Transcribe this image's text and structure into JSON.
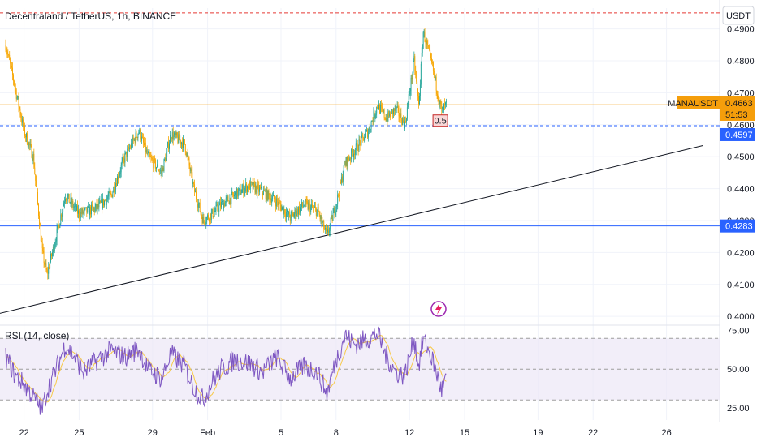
{
  "header": {
    "title": "Decentraland / TetherUS, 1h, BINANCE",
    "currency": "USDT"
  },
  "colors": {
    "up": "#26a69a",
    "down": "#f7a600",
    "hline_blue": "#2962ff",
    "hline_red": "#e53935",
    "trendline": "#131722",
    "rsi_line": "#7e57c2",
    "rsi_ma": "#f7c948",
    "rsi_band": "#ede7f6",
    "price_tag": "#f59e0b",
    "level_tag": "#2962ff"
  },
  "chart_data": [
    {
      "type": "candlestick",
      "symbol": "MANAUSDT",
      "interval": "1h",
      "x_tick_labels": [
        "22",
        "25",
        "29",
        "Feb",
        "5",
        "8",
        "12",
        "15",
        "19",
        "22",
        "26"
      ],
      "y_tick_labels": [
        "0.4900",
        "0.4800",
        "0.4700",
        "0.4600",
        "0.4500",
        "0.4400",
        "0.4300",
        "0.4200",
        "0.4100",
        "0.4000"
      ],
      "ylim": [
        0.3975,
        0.4965
      ],
      "grid": true,
      "approx_close_path": [
        {
          "x": "Jan 21 00:00",
          "y": 0.485
        },
        {
          "x": "Jan 21 12:00",
          "y": 0.472
        },
        {
          "x": "Jan 22 00:00",
          "y": 0.458
        },
        {
          "x": "Jan 22 12:00",
          "y": 0.45
        },
        {
          "x": "Jan 23 00:00",
          "y": 0.42
        },
        {
          "x": "Jan 23 06:00",
          "y": 0.413
        },
        {
          "x": "Jan 23 18:00",
          "y": 0.425
        },
        {
          "x": "Jan 24 06:00",
          "y": 0.438
        },
        {
          "x": "Jan 25 00:00",
          "y": 0.432
        },
        {
          "x": "Jan 25 12:00",
          "y": 0.433
        },
        {
          "x": "Jan 26 00:00",
          "y": 0.434
        },
        {
          "x": "Jan 26 18:00",
          "y": 0.438
        },
        {
          "x": "Jan 27 12:00",
          "y": 0.45
        },
        {
          "x": "Jan 28 06:00",
          "y": 0.458
        },
        {
          "x": "Jan 28 18:00",
          "y": 0.45
        },
        {
          "x": "Jan 29 12:00",
          "y": 0.445
        },
        {
          "x": "Jan 30 00:00",
          "y": 0.457
        },
        {
          "x": "Jan 30 18:00",
          "y": 0.454
        },
        {
          "x": "Jan 31 06:00",
          "y": 0.44
        },
        {
          "x": "Jan 31 18:00",
          "y": 0.43
        },
        {
          "x": "Feb 1 06:00",
          "y": 0.432
        },
        {
          "x": "Feb 1 18:00",
          "y": 0.435
        },
        {
          "x": "Feb 2 12:00",
          "y": 0.438
        },
        {
          "x": "Feb 3 06:00",
          "y": 0.441
        },
        {
          "x": "Feb 4 00:00",
          "y": 0.439
        },
        {
          "x": "Feb 4 18:00",
          "y": 0.436
        },
        {
          "x": "Feb 5 12:00",
          "y": 0.431
        },
        {
          "x": "Feb 6 06:00",
          "y": 0.435
        },
        {
          "x": "Feb 7 00:00",
          "y": 0.433
        },
        {
          "x": "Feb 7 12:00",
          "y": 0.425
        },
        {
          "x": "Feb 8 00:00",
          "y": 0.435
        },
        {
          "x": "Feb 8 12:00",
          "y": 0.448
        },
        {
          "x": "Feb 9 00:00",
          "y": 0.452
        },
        {
          "x": "Feb 9 18:00",
          "y": 0.458
        },
        {
          "x": "Feb 10 06:00",
          "y": 0.466
        },
        {
          "x": "Feb 10 18:00",
          "y": 0.462
        },
        {
          "x": "Feb 11 06:00",
          "y": 0.465
        },
        {
          "x": "Feb 11 18:00",
          "y": 0.46
        },
        {
          "x": "Feb 12 06:00",
          "y": 0.48
        },
        {
          "x": "Feb 12 12:00",
          "y": 0.466
        },
        {
          "x": "Feb 12 18:00",
          "y": 0.489
        },
        {
          "x": "Feb 13 06:00",
          "y": 0.478
        },
        {
          "x": "Feb 13 18:00",
          "y": 0.464
        },
        {
          "x": "Feb 14 00:00",
          "y": 0.4663
        }
      ],
      "horizontal_lines": [
        {
          "value": 0.4597,
          "label": "0.4597",
          "style": "dashed",
          "color": "#2962ff"
        },
        {
          "value": 0.4283,
          "label": "0.4283",
          "style": "solid",
          "color": "#2962ff"
        },
        {
          "value": 0.495,
          "style": "dashed",
          "color": "#e53935"
        }
      ],
      "trendline": {
        "from": {
          "x": "Jan 20 00:00",
          "y": 0.4
        },
        "to": {
          "x": "Feb 28 00:00",
          "y": 0.4535
        }
      },
      "last_price": {
        "symbol": "MANAUSDT",
        "value": "0.4663",
        "countdown": "51:53"
      },
      "annotation": {
        "text": "0.5",
        "x": "Feb 13 12:00",
        "y": 0.459
      }
    },
    {
      "type": "line",
      "indicator_label": "RSI (14, close)",
      "y_tick_labels": [
        "75.00",
        "50.00",
        "25.00"
      ],
      "ylim": [
        17,
        78
      ],
      "band": [
        30,
        70
      ],
      "approx_values": [
        {
          "x": "Jan 21 00:00",
          "y": 58
        },
        {
          "x": "Jan 21 12:00",
          "y": 46
        },
        {
          "x": "Jan 22 00:00",
          "y": 40
        },
        {
          "x": "Jan 22 12:00",
          "y": 32
        },
        {
          "x": "Jan 23 00:00",
          "y": 24
        },
        {
          "x": "Jan 23 06:00",
          "y": 36
        },
        {
          "x": "Jan 23 18:00",
          "y": 50
        },
        {
          "x": "Jan 24 06:00",
          "y": 66
        },
        {
          "x": "Jan 24 18:00",
          "y": 58
        },
        {
          "x": "Jan 25 06:00",
          "y": 48
        },
        {
          "x": "Jan 26 00:00",
          "y": 56
        },
        {
          "x": "Jan 26 18:00",
          "y": 62
        },
        {
          "x": "Jan 27 12:00",
          "y": 58
        },
        {
          "x": "Jan 28 06:00",
          "y": 63
        },
        {
          "x": "Jan 28 18:00",
          "y": 50
        },
        {
          "x": "Jan 29 12:00",
          "y": 44
        },
        {
          "x": "Jan 30 00:00",
          "y": 60
        },
        {
          "x": "Jan 30 18:00",
          "y": 52
        },
        {
          "x": "Jan 31 06:00",
          "y": 38
        },
        {
          "x": "Jan 31 18:00",
          "y": 30
        },
        {
          "x": "Feb 1 06:00",
          "y": 42
        },
        {
          "x": "Feb 1 18:00",
          "y": 50
        },
        {
          "x": "Feb 2 12:00",
          "y": 56
        },
        {
          "x": "Feb 3 06:00",
          "y": 54
        },
        {
          "x": "Feb 4 00:00",
          "y": 48
        },
        {
          "x": "Feb 4 18:00",
          "y": 58
        },
        {
          "x": "Feb 5 12:00",
          "y": 44
        },
        {
          "x": "Feb 6 06:00",
          "y": 52
        },
        {
          "x": "Feb 7 00:00",
          "y": 48
        },
        {
          "x": "Feb 7 12:00",
          "y": 34
        },
        {
          "x": "Feb 8 00:00",
          "y": 56
        },
        {
          "x": "Feb 8 12:00",
          "y": 72
        },
        {
          "x": "Feb 9 00:00",
          "y": 66
        },
        {
          "x": "Feb 9 18:00",
          "y": 70
        },
        {
          "x": "Feb 10 06:00",
          "y": 73
        },
        {
          "x": "Feb 10 18:00",
          "y": 58
        },
        {
          "x": "Feb 11 06:00",
          "y": 48
        },
        {
          "x": "Feb 11 18:00",
          "y": 46
        },
        {
          "x": "Feb 12 06:00",
          "y": 70
        },
        {
          "x": "Feb 12 12:00",
          "y": 52
        },
        {
          "x": "Feb 12 18:00",
          "y": 70
        },
        {
          "x": "Feb 13 06:00",
          "y": 56
        },
        {
          "x": "Feb 13 18:00",
          "y": 36
        },
        {
          "x": "Feb 14 00:00",
          "y": 44
        }
      ]
    }
  ]
}
